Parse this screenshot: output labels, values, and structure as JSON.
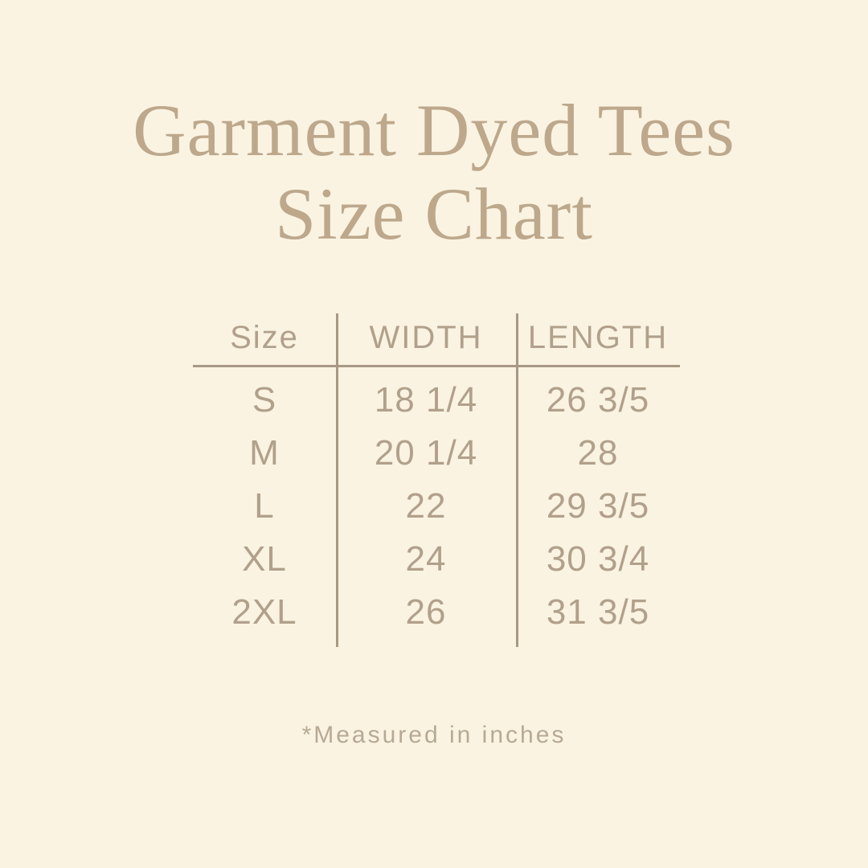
{
  "colors": {
    "background": "#faf3e2",
    "title": "#bda88c",
    "table_text": "#b1a08b",
    "rule": "#a89884",
    "footnote": "#b7a994"
  },
  "title": {
    "line1": "Garment Dyed Tees",
    "line2": "Size Chart"
  },
  "footnote": "*Measured in inches",
  "chart_data": {
    "type": "table",
    "title": "Garment Dyed Tees Size Chart",
    "columns": [
      "Size",
      "WIDTH",
      "LENGTH"
    ],
    "rows": [
      [
        "S",
        "18 1/4",
        "26 3/5"
      ],
      [
        "M",
        "20 1/4",
        "28"
      ],
      [
        "L",
        "22",
        "29 3/5"
      ],
      [
        "XL",
        "24",
        "30 3/4"
      ],
      [
        "2XL",
        "26",
        "31 3/5"
      ]
    ],
    "note": "*Measured in inches",
    "units": "inches"
  }
}
